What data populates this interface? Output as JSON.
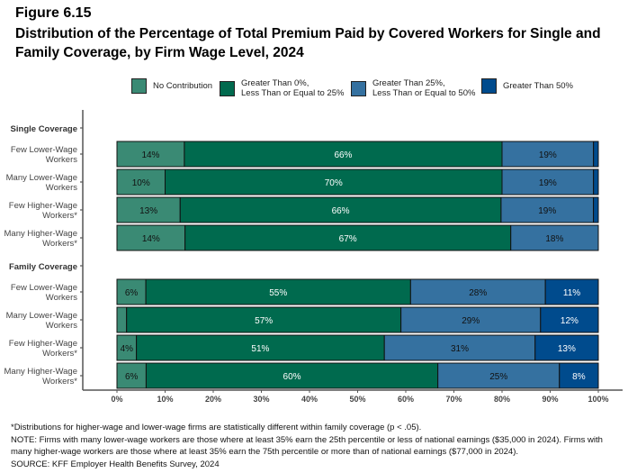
{
  "figure_label": "Figure 6.15",
  "title": "Distribution of the Percentage of Total Premium Paid by Covered Workers for Single and Family Coverage, by Firm Wage Level, 2024",
  "chart_data": {
    "type": "bar",
    "orientation": "horizontal",
    "stacked": true,
    "legend_position": "top",
    "xlim": [
      0,
      100
    ],
    "x_ticks": [
      "0%",
      "10%",
      "20%",
      "30%",
      "40%",
      "50%",
      "60%",
      "70%",
      "80%",
      "90%",
      "100%"
    ],
    "series": [
      {
        "name": "No Contribution",
        "color": "#3A8A74"
      },
      {
        "name": "Greater Than 0%, Less Than or Equal to 25%",
        "color": "#006A4E"
      },
      {
        "name": "Greater Than 25%, Less Than or Equal to 50%",
        "color": "#3571A0"
      },
      {
        "name": "Greater Than 50%",
        "color": "#004B8D"
      }
    ],
    "groups": [
      {
        "label": "Single Coverage",
        "rows": [
          {
            "label": "Few Lower-Wage Workers",
            "values": [
              14,
              66,
              19,
              1
            ]
          },
          {
            "label": "Many Lower-Wage Workers",
            "values": [
              10,
              70,
              19,
              1
            ]
          },
          {
            "label": "Few Higher-Wage Workers*",
            "values": [
              13,
              66,
              19,
              1
            ]
          },
          {
            "label": "Many Higher-Wage Workers*",
            "values": [
              14,
              67,
              18,
              0
            ]
          }
        ]
      },
      {
        "label": "Family Coverage",
        "rows": [
          {
            "label": "Few Lower-Wage Workers",
            "values": [
              6,
              55,
              28,
              11
            ]
          },
          {
            "label": "Many Lower-Wage Workers",
            "values": [
              2,
              57,
              29,
              12
            ]
          },
          {
            "label": "Few Higher-Wage Workers*",
            "values": [
              4,
              51,
              31,
              13
            ]
          },
          {
            "label": "Many Higher-Wage Workers*",
            "values": [
              6,
              60,
              25,
              8
            ]
          }
        ]
      }
    ]
  },
  "legend": {
    "items": [
      {
        "line1": "No Contribution",
        "line2": ""
      },
      {
        "line1": "Greater Than 0%,",
        "line2": "Less Than or Equal to 25%"
      },
      {
        "line1": "Greater Than 25%,",
        "line2": "Less Than or Equal to 50%"
      },
      {
        "line1": "Greater Than 50%",
        "line2": ""
      }
    ]
  },
  "footnotes": {
    "star": "*Distributions for higher-wage and lower-wage firms are statistically different within family coverage (p < .05).",
    "note": "NOTE: Firms with many lower-wage workers are those where at least 35% earn the 25th percentile or less of national earnings ($35,000 in 2024). Firms with many higher-wage workers are those where at least 35% earn the 75th percentile or more than of national earnings ($77,000 in 2024).",
    "source": "SOURCE: KFF Employer Health Benefits Survey, 2024"
  }
}
